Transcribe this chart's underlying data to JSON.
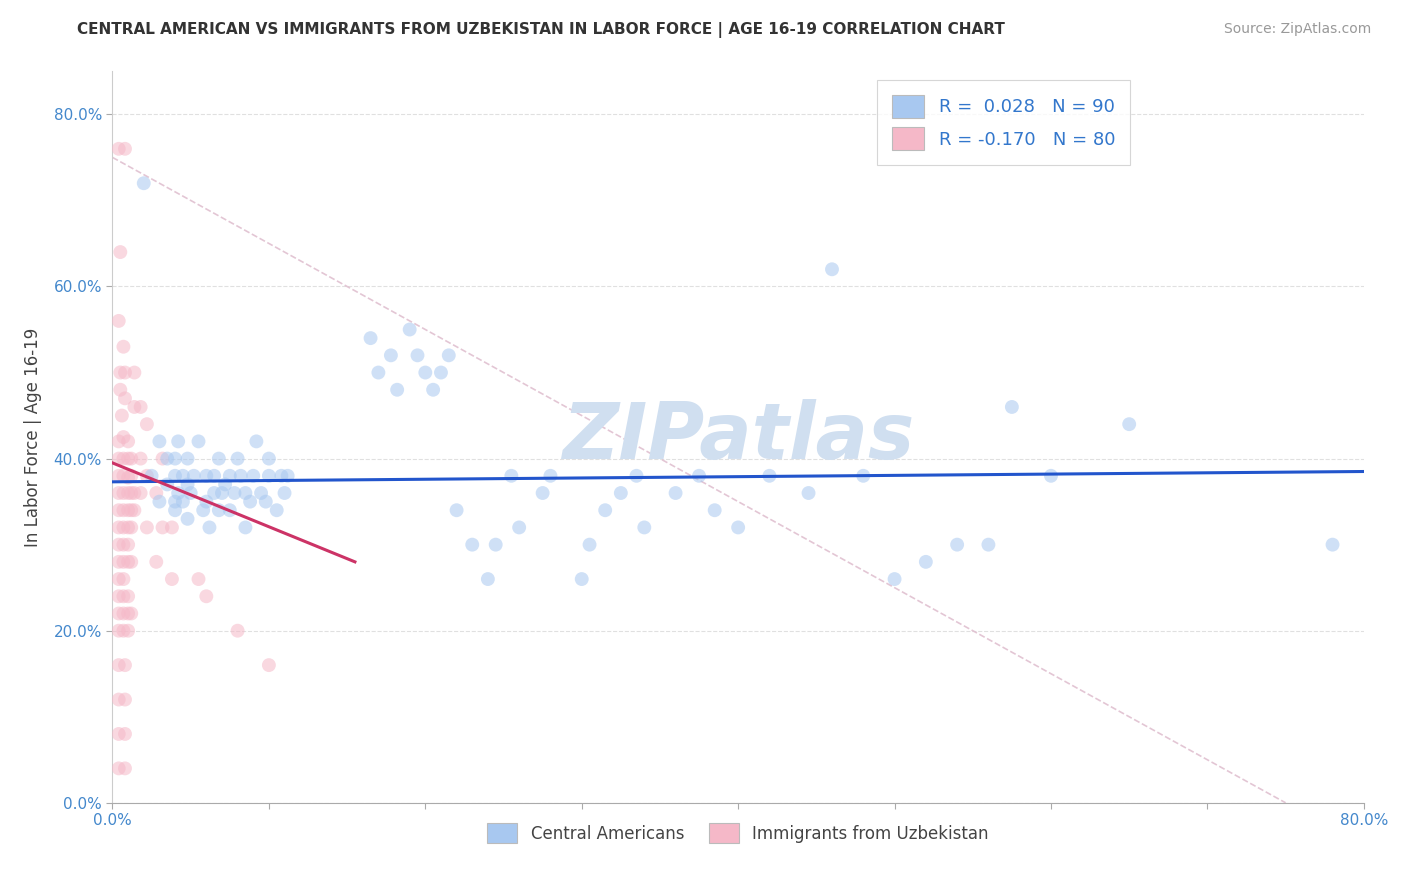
{
  "title": "CENTRAL AMERICAN VS IMMIGRANTS FROM UZBEKISTAN IN LABOR FORCE | AGE 16-19 CORRELATION CHART",
  "source": "Source: ZipAtlas.com",
  "ylabel": "In Labor Force | Age 16-19",
  "blue_color": "#a8c8f0",
  "pink_color": "#f5b8c8",
  "blue_line_color": "#2255cc",
  "pink_line_color": "#cc3366",
  "diag_line_color": "#e0c0d0",
  "blue_scatter": [
    [
      0.02,
      0.72
    ],
    [
      0.025,
      0.38
    ],
    [
      0.03,
      0.35
    ],
    [
      0.03,
      0.42
    ],
    [
      0.035,
      0.37
    ],
    [
      0.035,
      0.4
    ],
    [
      0.04,
      0.35
    ],
    [
      0.04,
      0.38
    ],
    [
      0.04,
      0.34
    ],
    [
      0.04,
      0.4
    ],
    [
      0.042,
      0.42
    ],
    [
      0.042,
      0.36
    ],
    [
      0.045,
      0.38
    ],
    [
      0.045,
      0.35
    ],
    [
      0.048,
      0.4
    ],
    [
      0.048,
      0.33
    ],
    [
      0.048,
      0.37
    ],
    [
      0.05,
      0.36
    ],
    [
      0.052,
      0.38
    ],
    [
      0.055,
      0.42
    ],
    [
      0.058,
      0.34
    ],
    [
      0.06,
      0.38
    ],
    [
      0.06,
      0.35
    ],
    [
      0.062,
      0.32
    ],
    [
      0.065,
      0.36
    ],
    [
      0.065,
      0.38
    ],
    [
      0.068,
      0.4
    ],
    [
      0.068,
      0.34
    ],
    [
      0.07,
      0.36
    ],
    [
      0.072,
      0.37
    ],
    [
      0.075,
      0.38
    ],
    [
      0.075,
      0.34
    ],
    [
      0.078,
      0.36
    ],
    [
      0.08,
      0.4
    ],
    [
      0.082,
      0.38
    ],
    [
      0.085,
      0.36
    ],
    [
      0.085,
      0.32
    ],
    [
      0.088,
      0.35
    ],
    [
      0.09,
      0.38
    ],
    [
      0.092,
      0.42
    ],
    [
      0.095,
      0.36
    ],
    [
      0.098,
      0.35
    ],
    [
      0.1,
      0.38
    ],
    [
      0.1,
      0.4
    ],
    [
      0.105,
      0.34
    ],
    [
      0.108,
      0.38
    ],
    [
      0.11,
      0.36
    ],
    [
      0.112,
      0.38
    ],
    [
      0.165,
      0.54
    ],
    [
      0.17,
      0.5
    ],
    [
      0.178,
      0.52
    ],
    [
      0.182,
      0.48
    ],
    [
      0.19,
      0.55
    ],
    [
      0.195,
      0.52
    ],
    [
      0.2,
      0.5
    ],
    [
      0.205,
      0.48
    ],
    [
      0.21,
      0.5
    ],
    [
      0.215,
      0.52
    ],
    [
      0.22,
      0.34
    ],
    [
      0.23,
      0.3
    ],
    [
      0.24,
      0.26
    ],
    [
      0.245,
      0.3
    ],
    [
      0.255,
      0.38
    ],
    [
      0.26,
      0.32
    ],
    [
      0.275,
      0.36
    ],
    [
      0.28,
      0.38
    ],
    [
      0.3,
      0.26
    ],
    [
      0.305,
      0.3
    ],
    [
      0.315,
      0.34
    ],
    [
      0.325,
      0.36
    ],
    [
      0.335,
      0.38
    ],
    [
      0.34,
      0.32
    ],
    [
      0.36,
      0.36
    ],
    [
      0.375,
      0.38
    ],
    [
      0.385,
      0.34
    ],
    [
      0.4,
      0.32
    ],
    [
      0.42,
      0.38
    ],
    [
      0.445,
      0.36
    ],
    [
      0.46,
      0.62
    ],
    [
      0.48,
      0.38
    ],
    [
      0.5,
      0.26
    ],
    [
      0.52,
      0.28
    ],
    [
      0.54,
      0.3
    ],
    [
      0.56,
      0.3
    ],
    [
      0.575,
      0.46
    ],
    [
      0.6,
      0.38
    ],
    [
      0.65,
      0.44
    ],
    [
      0.78,
      0.3
    ]
  ],
  "pink_scatter": [
    [
      0.004,
      0.76
    ],
    [
      0.008,
      0.76
    ],
    [
      0.005,
      0.64
    ],
    [
      0.004,
      0.56
    ],
    [
      0.007,
      0.53
    ],
    [
      0.005,
      0.5
    ],
    [
      0.008,
      0.5
    ],
    [
      0.005,
      0.48
    ],
    [
      0.008,
      0.47
    ],
    [
      0.006,
      0.45
    ],
    [
      0.004,
      0.42
    ],
    [
      0.007,
      0.425
    ],
    [
      0.01,
      0.42
    ],
    [
      0.004,
      0.4
    ],
    [
      0.007,
      0.4
    ],
    [
      0.01,
      0.4
    ],
    [
      0.012,
      0.4
    ],
    [
      0.004,
      0.38
    ],
    [
      0.007,
      0.38
    ],
    [
      0.01,
      0.378
    ],
    [
      0.012,
      0.38
    ],
    [
      0.004,
      0.36
    ],
    [
      0.007,
      0.36
    ],
    [
      0.01,
      0.36
    ],
    [
      0.012,
      0.36
    ],
    [
      0.014,
      0.36
    ],
    [
      0.004,
      0.34
    ],
    [
      0.007,
      0.34
    ],
    [
      0.01,
      0.34
    ],
    [
      0.012,
      0.34
    ],
    [
      0.014,
      0.34
    ],
    [
      0.004,
      0.32
    ],
    [
      0.007,
      0.32
    ],
    [
      0.01,
      0.32
    ],
    [
      0.012,
      0.32
    ],
    [
      0.004,
      0.3
    ],
    [
      0.007,
      0.3
    ],
    [
      0.01,
      0.3
    ],
    [
      0.004,
      0.28
    ],
    [
      0.007,
      0.28
    ],
    [
      0.01,
      0.28
    ],
    [
      0.012,
      0.28
    ],
    [
      0.004,
      0.26
    ],
    [
      0.007,
      0.26
    ],
    [
      0.004,
      0.24
    ],
    [
      0.007,
      0.24
    ],
    [
      0.01,
      0.24
    ],
    [
      0.004,
      0.22
    ],
    [
      0.007,
      0.22
    ],
    [
      0.01,
      0.22
    ],
    [
      0.012,
      0.22
    ],
    [
      0.004,
      0.2
    ],
    [
      0.007,
      0.2
    ],
    [
      0.01,
      0.2
    ],
    [
      0.004,
      0.16
    ],
    [
      0.008,
      0.16
    ],
    [
      0.004,
      0.12
    ],
    [
      0.008,
      0.12
    ],
    [
      0.004,
      0.08
    ],
    [
      0.008,
      0.08
    ],
    [
      0.004,
      0.04
    ],
    [
      0.008,
      0.04
    ],
    [
      0.014,
      0.5
    ],
    [
      0.014,
      0.46
    ],
    [
      0.018,
      0.46
    ],
    [
      0.018,
      0.4
    ],
    [
      0.018,
      0.36
    ],
    [
      0.022,
      0.44
    ],
    [
      0.022,
      0.38
    ],
    [
      0.022,
      0.32
    ],
    [
      0.028,
      0.36
    ],
    [
      0.028,
      0.28
    ],
    [
      0.032,
      0.4
    ],
    [
      0.032,
      0.32
    ],
    [
      0.038,
      0.32
    ],
    [
      0.038,
      0.26
    ],
    [
      0.055,
      0.26
    ],
    [
      0.06,
      0.24
    ],
    [
      0.08,
      0.2
    ],
    [
      0.1,
      0.16
    ]
  ],
  "xlim": [
    0.0,
    0.8
  ],
  "ylim": [
    0.0,
    0.85
  ],
  "xticks": [
    0.0,
    0.1,
    0.2,
    0.3,
    0.4,
    0.5,
    0.6,
    0.7,
    0.8
  ],
  "yticks": [
    0.0,
    0.2,
    0.4,
    0.6,
    0.8
  ],
  "ytick_labels": [
    "0.0%",
    "20.0%",
    "40.0%",
    "60.0%",
    "80.0%"
  ],
  "background_color": "#ffffff",
  "grid_color": "#e0e0e0",
  "watermark_text": "ZIPatlas",
  "watermark_color": "#d0dff0",
  "marker_size": 100,
  "marker_alpha": 0.55,
  "blue_line_start": 0.0,
  "blue_line_end": 0.8,
  "pink_line_start": 0.0,
  "pink_line_end": 0.155
}
